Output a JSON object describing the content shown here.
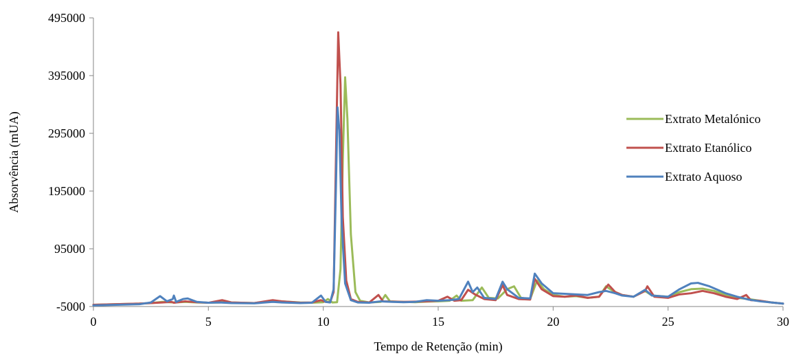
{
  "chart_data": {
    "type": "line",
    "title": "",
    "xlabel": "Tempo de Retenção (min)",
    "ylabel": "Absorvência (mUA)",
    "xlim": [
      0,
      30
    ],
    "ylim": [
      -5000,
      495000
    ],
    "x_ticks": [
      0,
      5,
      10,
      15,
      20,
      25,
      30
    ],
    "x_tick_labels": [
      "0",
      "5",
      "10",
      "15",
      "20",
      "25",
      "30"
    ],
    "y_ticks": [
      -5000,
      95000,
      195000,
      295000,
      395000,
      495000
    ],
    "y_tick_labels": [
      "-5000",
      "95000",
      "195000",
      "295000",
      "395000",
      "495000"
    ],
    "grid": false,
    "legend_position": "right",
    "series": [
      {
        "name": "Extrato Metalónico",
        "color": "#9bbb59",
        "points": [
          [
            0,
            -2000
          ],
          [
            1,
            -1000
          ],
          [
            2,
            0
          ],
          [
            2.5,
            1000
          ],
          [
            3,
            3000
          ],
          [
            3.5,
            2000
          ],
          [
            4,
            3000
          ],
          [
            4.5,
            2000
          ],
          [
            5,
            1500
          ],
          [
            5.5,
            2000
          ],
          [
            5.7,
            5000
          ],
          [
            6,
            2000
          ],
          [
            7,
            1000
          ],
          [
            7.8,
            5000
          ],
          [
            8.2,
            4000
          ],
          [
            9,
            2000
          ],
          [
            9.5,
            1500
          ],
          [
            10,
            2500
          ],
          [
            10.2,
            8000
          ],
          [
            10.4,
            2000
          ],
          [
            10.6,
            2500
          ],
          [
            10.75,
            60000
          ],
          [
            10.85,
            250000
          ],
          [
            10.95,
            392000
          ],
          [
            11.05,
            320000
          ],
          [
            11.2,
            120000
          ],
          [
            11.4,
            20000
          ],
          [
            11.6,
            5000
          ],
          [
            12,
            2000
          ],
          [
            12.5,
            3000
          ],
          [
            12.7,
            15000
          ],
          [
            12.9,
            4000
          ],
          [
            13.5,
            3000
          ],
          [
            14,
            2500
          ],
          [
            14.5,
            3500
          ],
          [
            15,
            4000
          ],
          [
            15.5,
            5000
          ],
          [
            15.8,
            14000
          ],
          [
            16,
            5000
          ],
          [
            16.5,
            6000
          ],
          [
            16.9,
            28000
          ],
          [
            17.2,
            10000
          ],
          [
            17.6,
            9000
          ],
          [
            18,
            25000
          ],
          [
            18.3,
            30000
          ],
          [
            18.6,
            10000
          ],
          [
            19,
            8000
          ],
          [
            19.3,
            40000
          ],
          [
            19.6,
            25000
          ],
          [
            20,
            15000
          ],
          [
            20.5,
            12000
          ],
          [
            21,
            13000
          ],
          [
            21.5,
            10000
          ],
          [
            22,
            12000
          ],
          [
            22.3,
            30000
          ],
          [
            22.6,
            22000
          ],
          [
            23,
            15000
          ],
          [
            23.5,
            12000
          ],
          [
            24,
            22000
          ],
          [
            24.3,
            14000
          ],
          [
            25,
            12000
          ],
          [
            25.5,
            20000
          ],
          [
            26,
            25000
          ],
          [
            26.5,
            26000
          ],
          [
            27,
            22000
          ],
          [
            27.5,
            15000
          ],
          [
            28,
            10000
          ],
          [
            28.5,
            8000
          ],
          [
            29,
            5000
          ],
          [
            29.5,
            2000
          ],
          [
            30,
            0
          ]
        ]
      },
      {
        "name": "Extrato Etanólico",
        "color": "#c0504d",
        "points": [
          [
            0,
            -2000
          ],
          [
            1,
            -1000
          ],
          [
            2,
            0
          ],
          [
            2.5,
            1000
          ],
          [
            3,
            2000
          ],
          [
            3.4,
            3000
          ],
          [
            3.5,
            1500
          ],
          [
            4,
            4000
          ],
          [
            4.5,
            2500
          ],
          [
            5,
            1500
          ],
          [
            5.6,
            6000
          ],
          [
            6,
            2000
          ],
          [
            7,
            1000
          ],
          [
            7.8,
            6000
          ],
          [
            8.2,
            4000
          ],
          [
            9,
            1500
          ],
          [
            9.5,
            2000
          ],
          [
            9.9,
            6000
          ],
          [
            10.1,
            3000
          ],
          [
            10.3,
            2500
          ],
          [
            10.45,
            20000
          ],
          [
            10.55,
            250000
          ],
          [
            10.65,
            470000
          ],
          [
            10.75,
            380000
          ],
          [
            10.85,
            150000
          ],
          [
            11,
            40000
          ],
          [
            11.2,
            8000
          ],
          [
            11.5,
            3000
          ],
          [
            12,
            2000
          ],
          [
            12.4,
            15000
          ],
          [
            12.6,
            4000
          ],
          [
            13.5,
            3000
          ],
          [
            14.5,
            4000
          ],
          [
            15,
            5000
          ],
          [
            15.4,
            12000
          ],
          [
            15.7,
            5000
          ],
          [
            16,
            6000
          ],
          [
            16.3,
            24000
          ],
          [
            16.6,
            16000
          ],
          [
            17,
            8000
          ],
          [
            17.5,
            6000
          ],
          [
            17.8,
            32000
          ],
          [
            18,
            15000
          ],
          [
            18.5,
            8000
          ],
          [
            19,
            7000
          ],
          [
            19.2,
            43000
          ],
          [
            19.5,
            25000
          ],
          [
            20,
            13000
          ],
          [
            20.5,
            12000
          ],
          [
            21,
            14000
          ],
          [
            21.5,
            10000
          ],
          [
            22,
            12000
          ],
          [
            22.4,
            33000
          ],
          [
            22.7,
            20000
          ],
          [
            23,
            15000
          ],
          [
            23.5,
            12000
          ],
          [
            24,
            22000
          ],
          [
            24.1,
            30000
          ],
          [
            24.4,
            12000
          ],
          [
            25,
            10000
          ],
          [
            25.5,
            16000
          ],
          [
            26,
            18000
          ],
          [
            26.5,
            22000
          ],
          [
            27,
            18000
          ],
          [
            27.5,
            12000
          ],
          [
            28,
            8000
          ],
          [
            28.4,
            15000
          ],
          [
            28.6,
            6000
          ],
          [
            29,
            5000
          ],
          [
            29.5,
            2000
          ],
          [
            30,
            0
          ]
        ]
      },
      {
        "name": "Extrato Aquoso",
        "color": "#4f81bd",
        "points": [
          [
            0,
            -3000
          ],
          [
            1,
            -2000
          ],
          [
            2,
            -1000
          ],
          [
            2.5,
            2000
          ],
          [
            2.9,
            13000
          ],
          [
            3.2,
            4000
          ],
          [
            3.45,
            8000
          ],
          [
            3.5,
            14000
          ],
          [
            3.6,
            3000
          ],
          [
            3.9,
            8000
          ],
          [
            4.1,
            9000
          ],
          [
            4.5,
            3000
          ],
          [
            5,
            1500
          ],
          [
            5.5,
            2000
          ],
          [
            6,
            1000
          ],
          [
            7,
            500
          ],
          [
            7.8,
            3000
          ],
          [
            8.2,
            2000
          ],
          [
            9,
            1000
          ],
          [
            9.5,
            1500
          ],
          [
            9.9,
            14000
          ],
          [
            10.1,
            3000
          ],
          [
            10.3,
            2000
          ],
          [
            10.45,
            25000
          ],
          [
            10.55,
            200000
          ],
          [
            10.62,
            340000
          ],
          [
            10.7,
            300000
          ],
          [
            10.8,
            140000
          ],
          [
            10.95,
            35000
          ],
          [
            11.2,
            6000
          ],
          [
            11.5,
            2000
          ],
          [
            12,
            1500
          ],
          [
            12.5,
            4000
          ],
          [
            13,
            3000
          ],
          [
            13.5,
            2500
          ],
          [
            14,
            3000
          ],
          [
            14.5,
            6000
          ],
          [
            15,
            5000
          ],
          [
            15.5,
            6000
          ],
          [
            15.9,
            8000
          ],
          [
            16.3,
            38000
          ],
          [
            16.5,
            20000
          ],
          [
            16.7,
            28000
          ],
          [
            17,
            10000
          ],
          [
            17.5,
            8000
          ],
          [
            17.8,
            38000
          ],
          [
            18,
            25000
          ],
          [
            18.5,
            10000
          ],
          [
            19,
            9000
          ],
          [
            19.2,
            52000
          ],
          [
            19.5,
            35000
          ],
          [
            20,
            18000
          ],
          [
            20.5,
            17000
          ],
          [
            21,
            16000
          ],
          [
            21.5,
            15000
          ],
          [
            22,
            20000
          ],
          [
            22.3,
            22000
          ],
          [
            22.7,
            18000
          ],
          [
            23,
            14000
          ],
          [
            23.5,
            12000
          ],
          [
            24,
            24000
          ],
          [
            24.3,
            14000
          ],
          [
            25,
            12000
          ],
          [
            25.5,
            25000
          ],
          [
            26,
            35000
          ],
          [
            26.3,
            36000
          ],
          [
            26.8,
            30000
          ],
          [
            27.5,
            18000
          ],
          [
            28,
            12000
          ],
          [
            28.5,
            7000
          ],
          [
            29,
            4000
          ],
          [
            29.5,
            2000
          ],
          [
            30,
            0
          ]
        ]
      }
    ]
  }
}
